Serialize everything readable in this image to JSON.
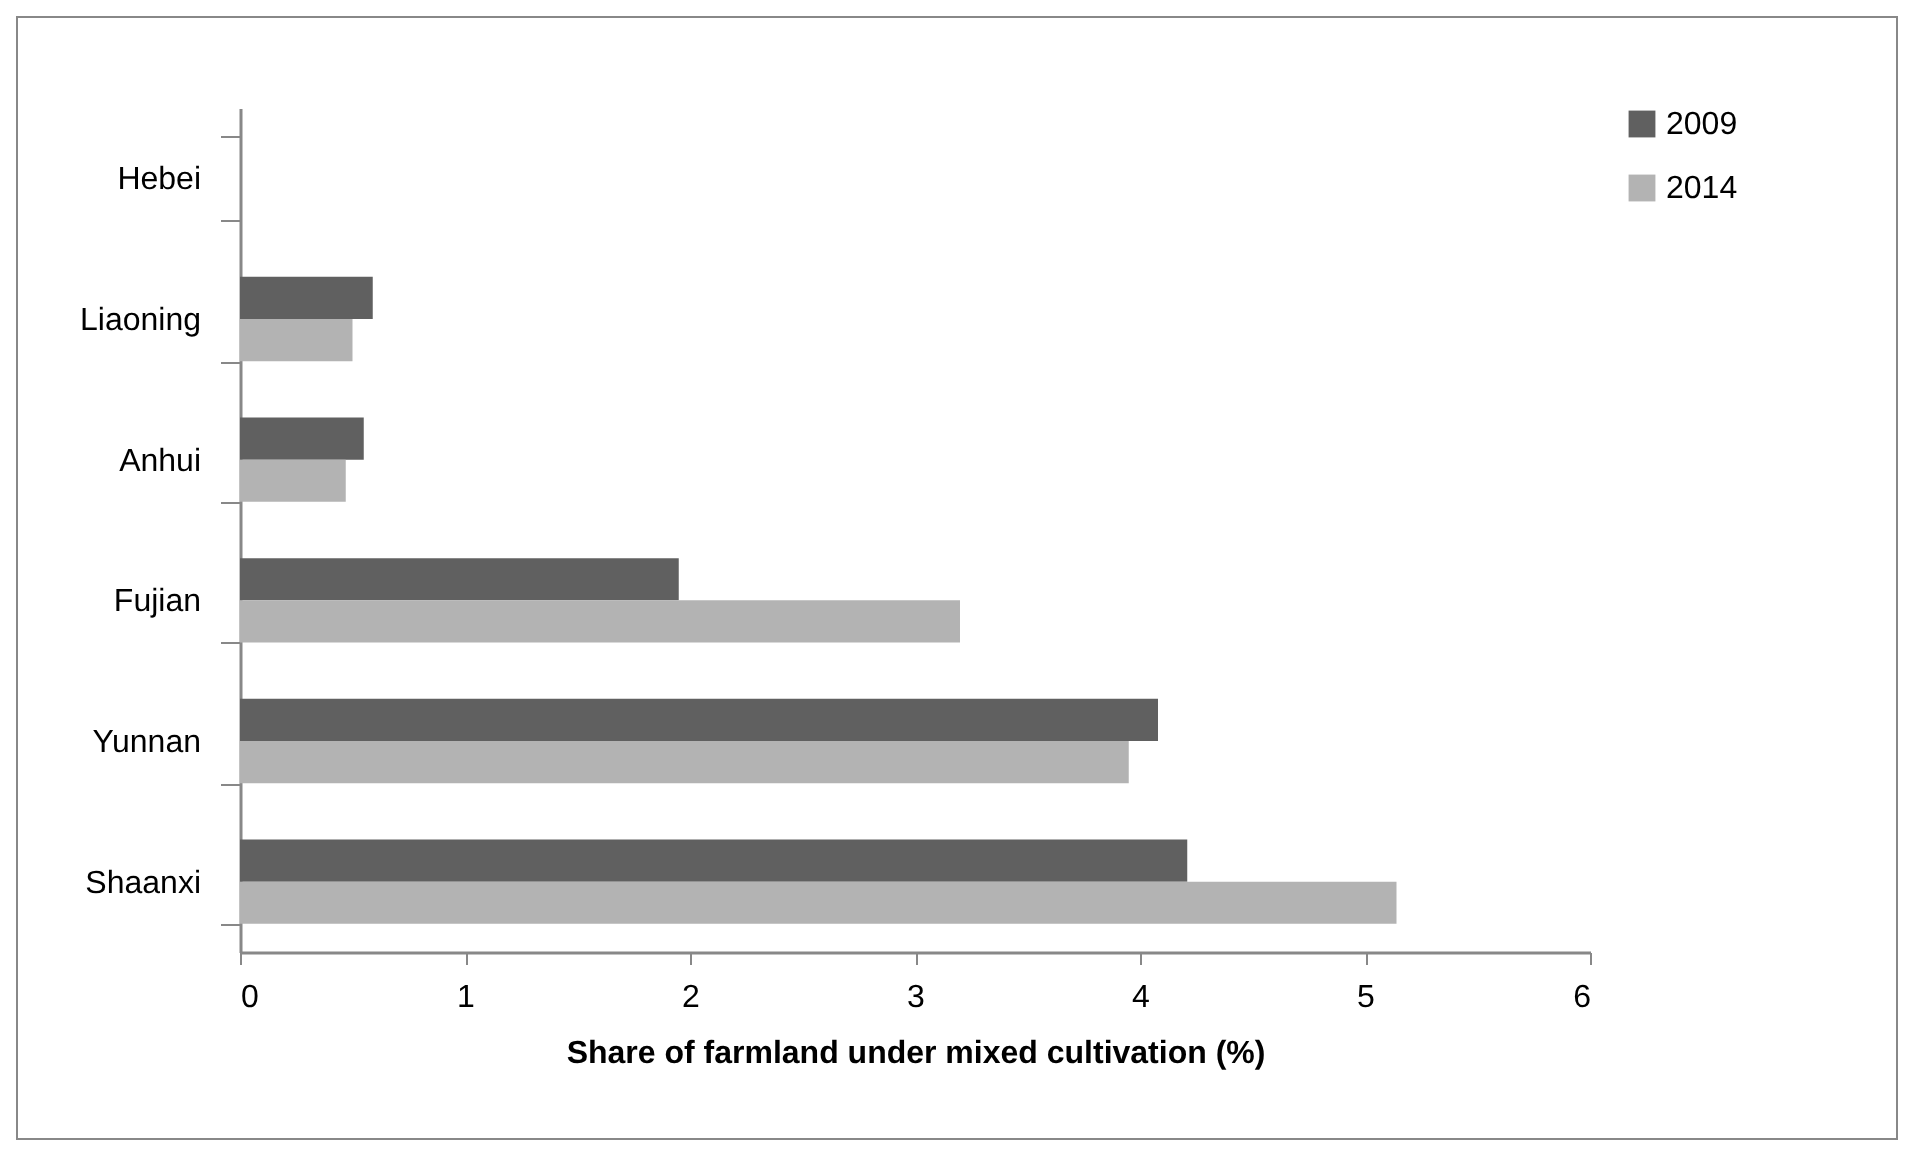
{
  "chart_data": {
    "type": "bar",
    "orientation": "horizontal",
    "xlabel": "Share of farmland under mixed cultivation (%)",
    "categories": [
      "Hebei",
      "Liaoning",
      "Anhui",
      "Fujian",
      "Yunnan",
      "Shaanxi"
    ],
    "series": [
      {
        "name": "2009",
        "color": "#606060",
        "values": [
          0,
          0.59,
          0.55,
          1.95,
          4.08,
          4.21
        ]
      },
      {
        "name": "2014",
        "color": "#b3b3b3",
        "values": [
          0,
          0.5,
          0.47,
          3.2,
          3.95,
          5.14
        ]
      }
    ],
    "xlim": [
      0,
      6
    ],
    "xticks": [
      0,
      1,
      2,
      3,
      4,
      5,
      6
    ],
    "grid": false,
    "legend": "right"
  }
}
